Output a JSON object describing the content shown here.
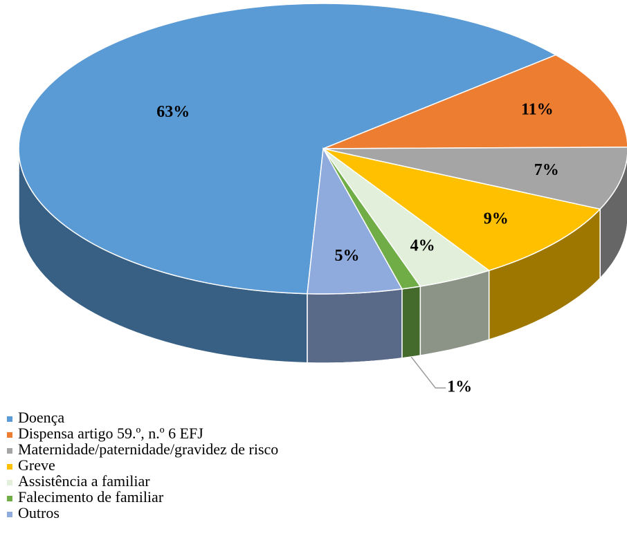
{
  "chart_data": {
    "type": "pie",
    "categories": [
      "Doença",
      "Dispensa artigo 59.º, n.º 6 EFJ",
      "Maternidade/paternidade/gravidez de risco",
      "Greve",
      "Assistência a familiar",
      "Falecimento de familiar",
      "Outros"
    ],
    "values": [
      63,
      11,
      7,
      9,
      4,
      1,
      5
    ],
    "value_labels": [
      "63%",
      "11%",
      "7%",
      "9%",
      "4%",
      "1%",
      "5%"
    ],
    "colors": [
      "#5b9bd5",
      "#ed7d31",
      "#a5a5a5",
      "#ffc000",
      "#e2efda",
      "#70ad47",
      "#8faadc"
    ],
    "legend": "bottom-left"
  }
}
